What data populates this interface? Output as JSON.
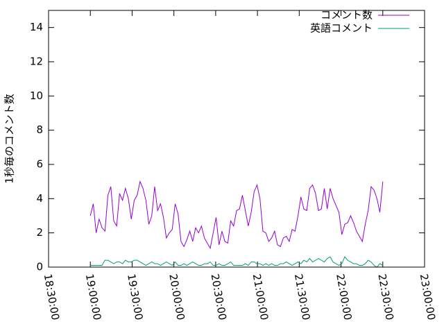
{
  "chart_data": {
    "type": "line",
    "ylabel": "1秒毎のコメント数",
    "xlim": [
      "18:30:00",
      "23:00:00"
    ],
    "xticks": [
      "18:30:00",
      "19:00:00",
      "19:30:00",
      "20:00:00",
      "20:30:00",
      "21:00:00",
      "21:30:00",
      "22:00:00",
      "22:30:00",
      "23:00:00"
    ],
    "ylim": [
      0,
      15
    ],
    "yticks": [
      0,
      2,
      4,
      6,
      8,
      10,
      12,
      14
    ],
    "legend": "top-right",
    "x": [
      "19:00:00",
      "19:02:06",
      "19:04:12",
      "19:06:18",
      "19:08:24",
      "19:10:30",
      "19:12:36",
      "19:14:42",
      "19:16:48",
      "19:18:54",
      "19:21:00",
      "19:23:06",
      "19:25:12",
      "19:27:18",
      "19:29:24",
      "19:31:30",
      "19:33:36",
      "19:35:42",
      "19:37:48",
      "19:39:54",
      "19:42:00",
      "19:44:06",
      "19:46:12",
      "19:48:18",
      "19:50:24",
      "19:52:30",
      "19:54:36",
      "19:56:42",
      "19:58:48",
      "20:00:54",
      "20:03:00",
      "20:05:06",
      "20:07:12",
      "20:09:18",
      "20:11:24",
      "20:13:30",
      "20:15:36",
      "20:17:42",
      "20:19:48",
      "20:21:54",
      "20:24:00",
      "20:26:06",
      "20:28:12",
      "20:30:18",
      "20:32:24",
      "20:34:30",
      "20:36:36",
      "20:38:42",
      "20:40:48",
      "20:42:54",
      "20:45:00",
      "20:47:06",
      "20:49:12",
      "20:51:18",
      "20:53:24",
      "20:55:30",
      "20:57:36",
      "20:59:42",
      "21:01:48",
      "21:03:54",
      "21:06:00",
      "21:08:06",
      "21:10:12",
      "21:12:18",
      "21:14:24",
      "21:16:30",
      "21:18:36",
      "21:20:42",
      "21:22:48",
      "21:24:54",
      "21:27:00",
      "21:29:06",
      "21:31:12",
      "21:33:18",
      "21:35:24",
      "21:37:30",
      "21:39:36",
      "21:41:42",
      "21:43:48",
      "21:45:54",
      "21:48:00",
      "21:50:06",
      "21:52:12",
      "21:54:18",
      "21:56:24",
      "21:58:30",
      "22:00:36",
      "22:02:42",
      "22:04:48",
      "22:06:54",
      "22:09:00",
      "22:11:06",
      "22:13:12",
      "22:15:18",
      "22:17:24",
      "22:19:30",
      "22:21:36",
      "22:23:42",
      "22:25:48",
      "22:27:54",
      "22:30:00"
    ],
    "series": [
      {
        "name": "コメント数",
        "color": "#9400d3",
        "values": [
          3.0,
          3.7,
          2.0,
          2.8,
          2.3,
          2.1,
          4.2,
          4.7,
          2.7,
          2.4,
          4.3,
          3.9,
          4.6,
          4.0,
          2.8,
          3.9,
          4.2,
          5.0,
          4.6,
          3.9,
          2.5,
          3.0,
          4.7,
          3.3,
          3.7,
          2.9,
          1.7,
          2.0,
          2.2,
          3.7,
          3.1,
          1.5,
          1.2,
          1.6,
          2.1,
          1.5,
          2.3,
          2.0,
          2.4,
          1.7,
          1.4,
          1.1,
          2.0,
          2.9,
          1.3,
          2.1,
          1.5,
          1.4,
          2.7,
          2.4,
          3.3,
          3.4,
          4.2,
          3.3,
          2.4,
          3.2,
          4.4,
          4.8,
          4.0,
          2.1,
          2.0,
          1.5,
          1.7,
          2.1,
          1.3,
          1.2,
          1.7,
          1.8,
          1.5,
          2.2,
          2.1,
          3.0,
          4.1,
          3.4,
          3.3,
          4.6,
          4.8,
          4.3,
          3.3,
          3.4,
          4.6,
          3.4,
          4.6,
          4.0,
          3.6,
          3.2,
          1.9,
          2.5,
          2.6,
          3.0,
          2.6,
          2.1,
          1.8,
          1.5,
          2.5,
          3.3,
          4.7,
          4.5,
          4.0,
          3.2,
          5.0
        ]
      },
      {
        "name": "英語コメント",
        "color": "#009e73",
        "values": [
          0.1,
          0.1,
          0.1,
          0.1,
          0.1,
          0.4,
          0.4,
          0.3,
          0.2,
          0.3,
          0.3,
          0.2,
          0.4,
          0.3,
          0.3,
          0.4,
          0.4,
          0.3,
          0.2,
          0.1,
          0.2,
          0.3,
          0.2,
          0.2,
          0.1,
          0.2,
          0.3,
          0.2,
          0.1,
          0.3,
          0.1,
          0.1,
          0.2,
          0.1,
          0.2,
          0.3,
          0.2,
          0.1,
          0.1,
          0.2,
          0.2,
          0.3,
          0.1,
          0.1,
          0.2,
          0.1,
          0.1,
          0.2,
          0.3,
          0.1,
          0.1,
          0.1,
          0.1,
          0.2,
          0.1,
          0.3,
          0.3,
          0.2,
          0.2,
          0.1,
          0.2,
          0.1,
          0.2,
          0.1,
          0.1,
          0.2,
          0.2,
          0.3,
          0.2,
          0.1,
          0.2,
          0.3,
          0.2,
          0.4,
          0.3,
          0.5,
          0.3,
          0.4,
          0.5,
          0.4,
          0.3,
          0.5,
          0.6,
          0.3,
          0.2,
          0.1,
          0.2,
          0.6,
          0.4,
          0.3,
          0.2,
          0.2,
          0.1,
          0.1,
          0.2,
          0.4,
          0.3,
          0.1,
          0.0,
          0.2,
          0.1
        ]
      }
    ]
  }
}
